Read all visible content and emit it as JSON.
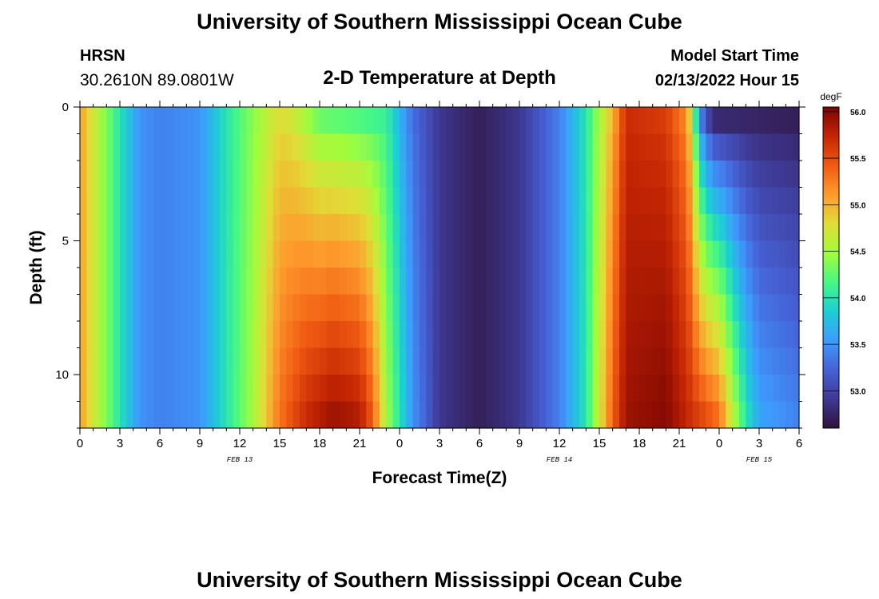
{
  "header": {
    "title": "University of Southern Mississippi Ocean Cube",
    "station": "HRSN",
    "coords": "30.2610N  89.0801W",
    "subtitle": "2-D Temperature at Depth",
    "model_start_label": "Model Start Time",
    "model_start_value": "02/13/2022 Hour 15",
    "footer_title": "University of Southern Mississippi Ocean Cube"
  },
  "colors": {
    "stops": [
      "#30123b",
      "#3e3994",
      "#4662d7",
      "#3e9bfe",
      "#1bcfd4",
      "#46f884",
      "#a2fc3c",
      "#e1dd37",
      "#fe9b2d",
      "#f05b12",
      "#c42503",
      "#7a0403"
    ]
  },
  "chart_data": {
    "type": "heatmap",
    "title": "2-D Temperature at Depth",
    "xlabel": "Forecast Time(Z)",
    "ylabel": "Depth (ft)",
    "x_range_hours": [
      0,
      54
    ],
    "y_range_ft": [
      0,
      12
    ],
    "x_ticks": [
      {
        "h": 0,
        "label": "0"
      },
      {
        "h": 3,
        "label": "3"
      },
      {
        "h": 6,
        "label": "6"
      },
      {
        "h": 9,
        "label": "9"
      },
      {
        "h": 12,
        "label": "12"
      },
      {
        "h": 15,
        "label": "15"
      },
      {
        "h": 18,
        "label": "18"
      },
      {
        "h": 21,
        "label": "21"
      },
      {
        "h": 24,
        "label": "0"
      },
      {
        "h": 27,
        "label": "3"
      },
      {
        "h": 30,
        "label": "6"
      },
      {
        "h": 33,
        "label": "9"
      },
      {
        "h": 36,
        "label": "12"
      },
      {
        "h": 39,
        "label": "15"
      },
      {
        "h": 42,
        "label": "18"
      },
      {
        "h": 45,
        "label": "21"
      },
      {
        "h": 48,
        "label": "0"
      },
      {
        "h": 51,
        "label": "3"
      },
      {
        "h": 54,
        "label": "6"
      }
    ],
    "date_labels": [
      {
        "h": 12,
        "label": "FEB 13"
      },
      {
        "h": 36,
        "label": "FEB 14"
      },
      {
        "h": 51,
        "label": "FEB 15"
      }
    ],
    "y_ticks": [
      {
        "v": 0,
        "label": "0"
      },
      {
        "v": 5,
        "label": "5"
      },
      {
        "v": 10,
        "label": "10"
      }
    ],
    "colorbar": {
      "units": "degF",
      "min": 52.6,
      "max": 56.05,
      "ticks": [
        {
          "v": 56.0,
          "label": "56.0"
        },
        {
          "v": 55.5,
          "label": "55.5"
        },
        {
          "v": 55.0,
          "label": "55.0"
        },
        {
          "v": 54.5,
          "label": "54.5"
        },
        {
          "v": 54.0,
          "label": "54.0"
        },
        {
          "v": 53.5,
          "label": "53.5"
        },
        {
          "v": 53.0,
          "label": "53.0"
        }
      ]
    },
    "depth_levels_ft": [
      0.5,
      1.5,
      2.5,
      3.5,
      4.5,
      5.5,
      6.5,
      7.5,
      8.5,
      9.5,
      10.5,
      11.5
    ],
    "surface_temperature_profile": [
      {
        "h": 0,
        "t": 55.1
      },
      {
        "h": 1,
        "t": 54.7
      },
      {
        "h": 3,
        "t": 54.0
      },
      {
        "h": 4.5,
        "t": 53.5
      },
      {
        "h": 6,
        "t": 53.4
      },
      {
        "h": 9,
        "t": 53.5
      },
      {
        "h": 11,
        "t": 54.0
      },
      {
        "h": 13,
        "t": 54.4
      },
      {
        "h": 15,
        "t": 54.8
      },
      {
        "h": 16,
        "t": 54.7
      },
      {
        "h": 18,
        "t": 54.3
      },
      {
        "h": 21,
        "t": 54.2
      },
      {
        "h": 23,
        "t": 54.1
      },
      {
        "h": 25,
        "t": 53.3
      },
      {
        "h": 27,
        "t": 52.9
      },
      {
        "h": 30,
        "t": 52.7
      },
      {
        "h": 33,
        "t": 52.9
      },
      {
        "h": 36,
        "t": 53.4
      },
      {
        "h": 38,
        "t": 54.0
      },
      {
        "h": 40,
        "t": 55.0
      },
      {
        "h": 41,
        "t": 55.7
      },
      {
        "h": 44,
        "t": 55.6
      },
      {
        "h": 45.5,
        "t": 55.2
      },
      {
        "h": 46,
        "t": 54.6
      },
      {
        "h": 46.5,
        "t": 53.5
      },
      {
        "h": 47.5,
        "t": 52.8
      },
      {
        "h": 54,
        "t": 52.7
      }
    ],
    "bottom_temperature_profile": [
      {
        "h": 0,
        "t": 55.1
      },
      {
        "h": 1,
        "t": 54.7
      },
      {
        "h": 3,
        "t": 54.0
      },
      {
        "h": 4.5,
        "t": 53.5
      },
      {
        "h": 6,
        "t": 53.4
      },
      {
        "h": 9,
        "t": 53.5
      },
      {
        "h": 11,
        "t": 54.0
      },
      {
        "h": 13,
        "t": 54.5
      },
      {
        "h": 15,
        "t": 55.3
      },
      {
        "h": 17,
        "t": 55.7
      },
      {
        "h": 19,
        "t": 55.9
      },
      {
        "h": 21,
        "t": 55.8
      },
      {
        "h": 22,
        "t": 55.4
      },
      {
        "h": 23,
        "t": 54.5
      },
      {
        "h": 25,
        "t": 53.5
      },
      {
        "h": 27,
        "t": 52.9
      },
      {
        "h": 30,
        "t": 52.7
      },
      {
        "h": 33,
        "t": 52.9
      },
      {
        "h": 36,
        "t": 53.4
      },
      {
        "h": 38,
        "t": 54.0
      },
      {
        "h": 40,
        "t": 55.4
      },
      {
        "h": 41,
        "t": 55.9
      },
      {
        "h": 44,
        "t": 56.0
      },
      {
        "h": 48,
        "t": 55.3
      },
      {
        "h": 49,
        "t": 54.6
      },
      {
        "h": 50,
        "t": 54.0
      },
      {
        "h": 51,
        "t": 53.6
      },
      {
        "h": 54,
        "t": 53.4
      }
    ]
  }
}
